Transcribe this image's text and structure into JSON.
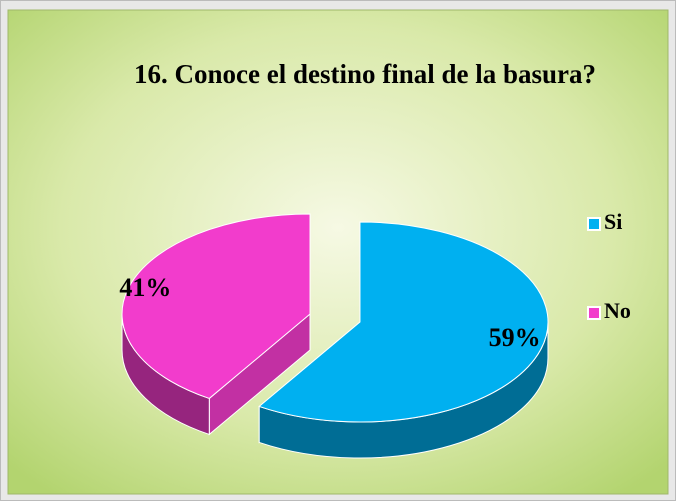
{
  "chart_data": {
    "type": "pie3d",
    "title": "16. Conoce el destino final de la basura?",
    "categories": [
      "Si",
      "No"
    ],
    "values": [
      59,
      41
    ],
    "value_labels": [
      "59%",
      "41%"
    ],
    "colors": [
      "#00b0f0",
      "#f23ccc"
    ],
    "legend": "right"
  }
}
